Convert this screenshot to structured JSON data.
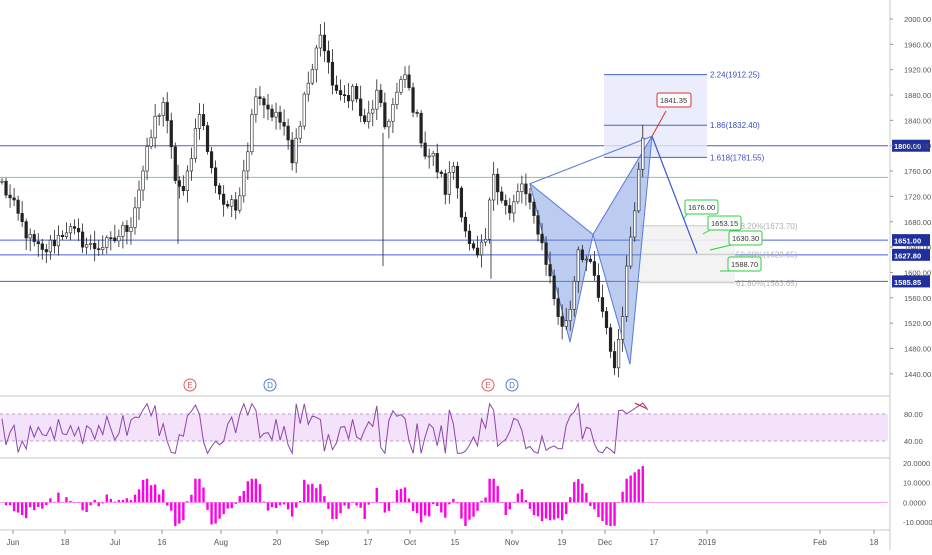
{
  "chart_data": {
    "type": "candlestick",
    "price_axis": {
      "range": [
        1405,
        2030
      ],
      "ticks": [
        "2000.00",
        "1960.00",
        "1920.00",
        "1880.00",
        "1840.00",
        "1800.00",
        "1760.00",
        "1720.00",
        "1680.00",
        "1640.00",
        "1600.00",
        "1560.00",
        "1520.00",
        "1480.00",
        "1440.00"
      ]
    },
    "time_axis": {
      "labels": [
        "Jun",
        "18",
        "Jul",
        "16",
        "Aug",
        "20",
        "Sep",
        "17",
        "Oct",
        "15",
        "Nov",
        "19",
        "Dec",
        "17",
        "2019",
        "Feb",
        "18"
      ]
    },
    "price_levels": [
      {
        "value": 1800.0,
        "label": "1800.00"
      },
      {
        "value": 1651.0,
        "label": "1651.00"
      },
      {
        "value": 1627.8,
        "label": "1627.80"
      },
      {
        "value": 1585.85,
        "label": "1585.85"
      }
    ],
    "green_level": 1750,
    "fib_extension": [
      {
        "value": 1912.25,
        "label": "2.24(1912.25)"
      },
      {
        "value": 1832.4,
        "label": "1.86(1832.40)"
      },
      {
        "value": 1781.55,
        "label": "1.618(1781.55)"
      }
    ],
    "fib_retracement": [
      {
        "value": 1673.7,
        "label": "38.20%(1673.70)"
      },
      {
        "value": 1628.65,
        "label": "50.00%(1628.65)"
      },
      {
        "value": 1583.65,
        "label": "61.80%(1583.65)"
      }
    ],
    "callouts": {
      "peak": "1841.35",
      "targets": [
        "1676.00",
        "1653.15",
        "1630.30",
        "1588.70"
      ]
    },
    "event_markers": [
      {
        "letter": "E",
        "color": "#e05a5a"
      },
      {
        "letter": "D",
        "color": "#4a7bd6"
      },
      {
        "letter": "E",
        "color": "#e05a5a"
      },
      {
        "letter": "D",
        "color": "#4a7bd6"
      }
    ],
    "pattern_points": [
      1740,
      1490,
      1660,
      1455,
      1815
    ],
    "projection": [
      1815,
      1630
    ],
    "price_path_keypoints": [
      [
        0,
        1740
      ],
      [
        7,
        1650
      ],
      [
        10,
        1630
      ],
      [
        16,
        1670
      ],
      [
        22,
        1640
      ],
      [
        27,
        1645
      ],
      [
        32,
        1680
      ],
      [
        35,
        1760
      ],
      [
        38,
        1840
      ],
      [
        40,
        1870
      ],
      [
        43,
        1750
      ],
      [
        45,
        1720
      ],
      [
        49,
        1860
      ],
      [
        52,
        1760
      ],
      [
        55,
        1710
      ],
      [
        58,
        1700
      ],
      [
        61,
        1800
      ],
      [
        63,
        1890
      ],
      [
        66,
        1860
      ],
      [
        70,
        1830
      ],
      [
        72,
        1770
      ],
      [
        75,
        1880
      ],
      [
        77,
        1920
      ],
      [
        79,
        1980
      ],
      [
        81,
        1920
      ],
      [
        84,
        1870
      ],
      [
        87,
        1890
      ],
      [
        90,
        1830
      ],
      [
        93,
        1880
      ],
      [
        95,
        1830
      ],
      [
        98,
        1880
      ],
      [
        100,
        1910
      ],
      [
        103,
        1840
      ],
      [
        105,
        1790
      ],
      [
        107,
        1780
      ],
      [
        110,
        1730
      ],
      [
        112,
        1770
      ],
      [
        114,
        1700
      ],
      [
        116,
        1640
      ],
      [
        118,
        1620
      ],
      [
        120,
        1650
      ],
      [
        122,
        1760
      ],
      [
        124,
        1720
      ],
      [
        126,
        1690
      ],
      [
        129,
        1740
      ],
      [
        131,
        1700
      ],
      [
        133,
        1670
      ],
      [
        135,
        1620
      ],
      [
        137,
        1560
      ],
      [
        139,
        1510
      ],
      [
        141,
        1545
      ],
      [
        143,
        1640
      ],
      [
        145,
        1620
      ],
      [
        147,
        1590
      ],
      [
        149,
        1530
      ],
      [
        151,
        1480
      ],
      [
        152,
        1450
      ],
      [
        154,
        1540
      ],
      [
        156,
        1660
      ],
      [
        158,
        1760
      ],
      [
        159,
        1815
      ]
    ],
    "rsi": {
      "ticks": [
        "80.00",
        "40.00"
      ],
      "range": [
        15,
        105
      ],
      "band": [
        40,
        80
      ]
    },
    "oscillator": {
      "ticks": [
        "20.0000",
        "10.0000",
        "0.0000",
        "-10.0000"
      ],
      "range": [
        -14,
        22
      ]
    }
  }
}
